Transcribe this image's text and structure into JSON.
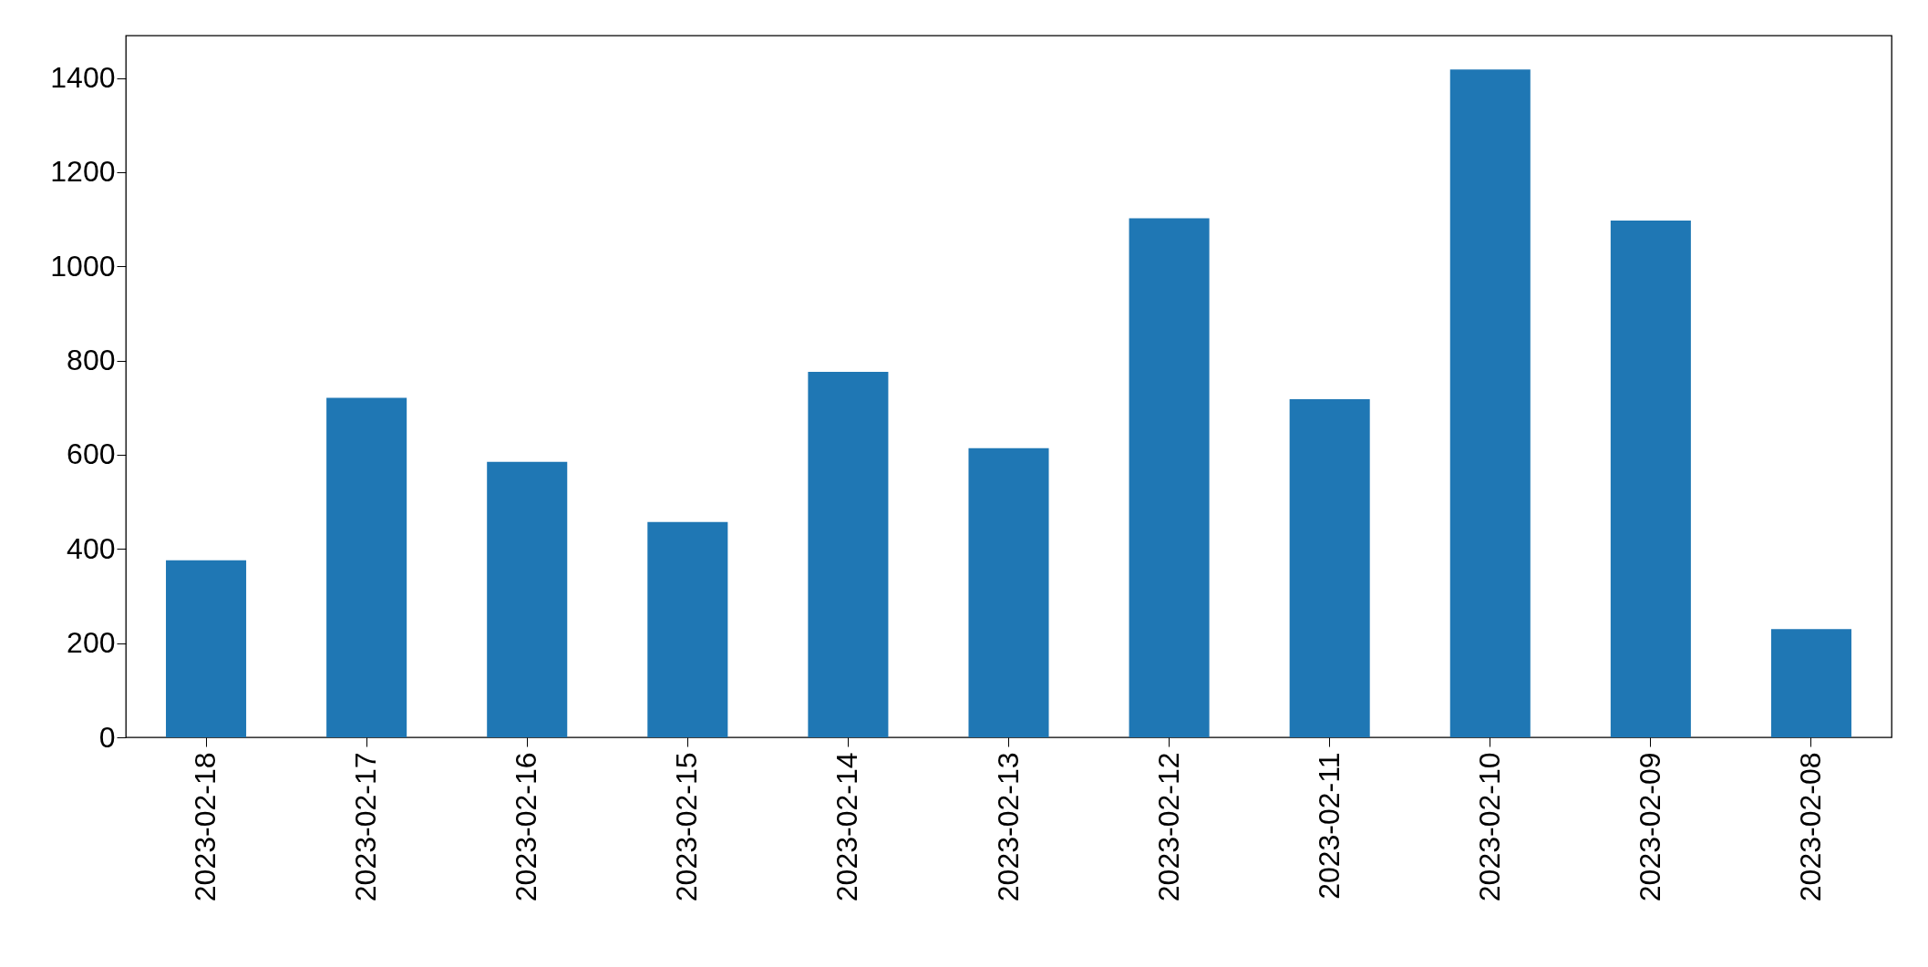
{
  "chart_data": {
    "type": "bar",
    "categories": [
      "2023-02-18",
      "2023-02-17",
      "2023-02-16",
      "2023-02-15",
      "2023-02-14",
      "2023-02-13",
      "2023-02-12",
      "2023-02-11",
      "2023-02-10",
      "2023-02-09",
      "2023-02-08"
    ],
    "values": [
      376,
      721,
      585,
      457,
      776,
      614,
      1102,
      718,
      1418,
      1097,
      230
    ],
    "color": "#1f77b4",
    "ylim": [
      0,
      1490
    ],
    "yticks": [
      0,
      200,
      400,
      600,
      800,
      1000,
      1200,
      1400
    ],
    "grid": false
  }
}
